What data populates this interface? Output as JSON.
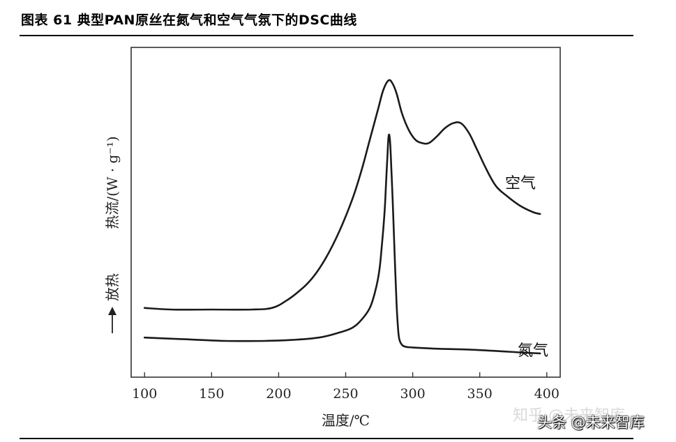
{
  "figure_title": "图表 61 典型PAN原丝在氮气和空气气氛下的DSC曲线",
  "watermark": {
    "line1": "知乎 @未来智库",
    "line2": "头条 @未来智库"
  },
  "chart_data": {
    "type": "line",
    "title": "图表 61 典型PAN原丝在氮气和空气气氛下的DSC曲线",
    "xlabel": "温度/℃",
    "ylabel": "热流/(W · g⁻¹)",
    "y_direction_label": "放热",
    "xlim": [
      90,
      410
    ],
    "ylim": [
      0,
      100
    ],
    "x_ticks": [
      100,
      150,
      200,
      250,
      300,
      350,
      400
    ],
    "y_ticks_labeled": false,
    "grid": false,
    "legend": "inline-labels",
    "series": [
      {
        "name": "空气",
        "x": [
          100,
          120,
          150,
          180,
          195,
          205,
          215,
          225,
          235,
          245,
          255,
          262,
          268,
          274,
          278,
          282,
          285,
          288,
          292,
          297,
          302,
          307,
          312,
          318,
          324,
          330,
          336,
          342,
          348,
          355,
          362,
          370,
          380,
          390,
          395
        ],
        "y": [
          21,
          20.5,
          20.5,
          20.5,
          21,
          23,
          26,
          30,
          36,
          44,
          54,
          63,
          72,
          81,
          87,
          90,
          89,
          86,
          80,
          75,
          72,
          71,
          71,
          73,
          75.5,
          77,
          77,
          74,
          69,
          63,
          58,
          55,
          52,
          50,
          49.5
        ]
      },
      {
        "name": "氮气",
        "x": [
          100,
          130,
          160,
          190,
          210,
          230,
          245,
          255,
          262,
          268,
          272,
          275,
          277,
          279,
          280,
          281,
          282,
          283,
          284,
          285,
          286,
          287,
          288,
          289,
          290,
          292,
          295,
          300,
          320,
          340,
          360,
          380,
          395
        ],
        "y": [
          12,
          11.5,
          11,
          11,
          11.3,
          12,
          13.5,
          15,
          17.5,
          21,
          26,
          32,
          40,
          50,
          58,
          66,
          73,
          72,
          64,
          54,
          43,
          32,
          22,
          15,
          11.5,
          9.8,
          9.2,
          9,
          8.6,
          8.4,
          8,
          7.5,
          7.2
        ]
      }
    ]
  }
}
